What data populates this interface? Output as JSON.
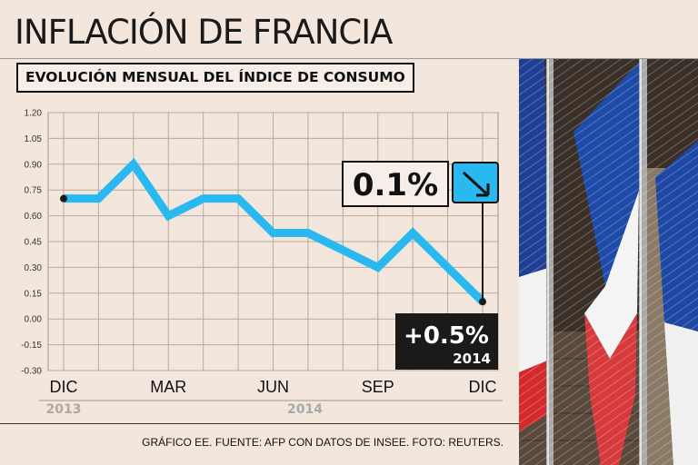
{
  "header": {
    "title": "INFLACIÓN DE FRANCIA",
    "subtitle": "EVOLUCIÓN MENSUAL DEL ÍNDICE DE CONSUMO"
  },
  "colors": {
    "line": "#29b9f0",
    "background": "#f3e7dd",
    "annotation_bg": "#1a1a1a"
  },
  "chart_data": {
    "type": "line",
    "title": "EVOLUCIÓN MENSUAL DEL ÍNDICE DE CONSUMO",
    "ylim": [
      -0.3,
      1.2
    ],
    "y_ticks": [
      "1.20",
      "1.05",
      "0.90",
      "0.75",
      "0.60",
      "0.45",
      "0.30",
      "0.15",
      "0.00",
      "-0.15",
      "-0.30"
    ],
    "x_tick_labels": [
      "DIC",
      "MAR",
      "JUN",
      "SEP",
      "DIC"
    ],
    "x_tick_months": [
      0,
      3,
      6,
      9,
      12
    ],
    "year_labels": [
      "2013",
      "2014"
    ],
    "series": [
      {
        "name": "Índice de consumo",
        "months": [
          0,
          1,
          2,
          3,
          4,
          5,
          6,
          7,
          8,
          9,
          10,
          11,
          12
        ],
        "values": [
          0.7,
          0.7,
          0.9,
          0.6,
          0.7,
          0.7,
          0.5,
          0.5,
          0.4,
          0.3,
          0.5,
          0.3,
          0.1
        ]
      }
    ],
    "callouts": {
      "latest_value": "0.1%",
      "trend": "down",
      "annual_value": "+0.5%",
      "annual_year": "2014"
    },
    "grid": true
  },
  "footer": {
    "credits": "GRÁFICO EE. FUENTE: AFP CON DATOS DE INSEE. FOTO: REUTERS."
  },
  "photo": {
    "subject": "French flags at half mast"
  }
}
